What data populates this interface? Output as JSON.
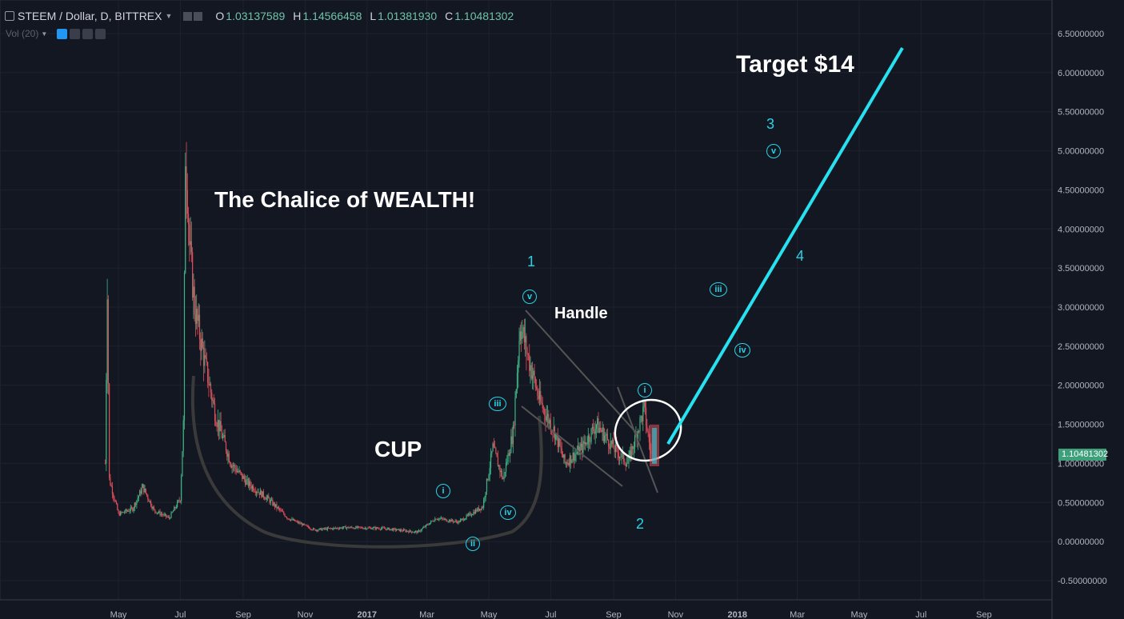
{
  "header": {
    "symbol": "STEEM / Dollar, D, BITTREX",
    "o_label": "O",
    "o_value": "1.03137589",
    "h_label": "H",
    "h_value": "1.14566458",
    "l_label": "L",
    "l_value": "1.01381930",
    "c_label": "C",
    "c_value": "1.10481302",
    "volume_label": "Vol (20)"
  },
  "price_tag": "1.10481302",
  "annotations": {
    "title": "The Chalice of WEALTH!",
    "cup": "CUP",
    "handle": "Handle",
    "target": "Target $14",
    "wave_1": "1",
    "wave_2": "2",
    "wave_3": "3",
    "wave_4": "4",
    "sub_v_top": "v",
    "sub_v_right": "v",
    "sub_i_left": "i",
    "sub_i_right": "i",
    "sub_ii": "ii",
    "sub_iii_left": "iii",
    "sub_iii_right": "iii",
    "sub_iv_left": "iv",
    "sub_iv_right": "iv"
  },
  "colors": {
    "background": "#131722",
    "up": "#3fb585",
    "down": "#e04e5a",
    "projection": "#27e0f0",
    "drawing": "#3d3d3d"
  },
  "chart_data": {
    "type": "candlestick",
    "y_ticks": [
      "6.50000000",
      "6.00000000",
      "5.50000000",
      "5.00000000",
      "4.50000000",
      "4.00000000",
      "3.50000000",
      "3.00000000",
      "2.50000000",
      "2.00000000",
      "1.50000000",
      "1.00000000",
      "0.50000000",
      "0.00000000",
      "-0.50000000"
    ],
    "ylim": [
      -0.5,
      6.5
    ],
    "x_ticks": [
      "May",
      "Jul",
      "Sep",
      "Nov",
      "2017",
      "Mar",
      "May",
      "Jul",
      "Sep",
      "Nov",
      "2018",
      "Mar",
      "May",
      "Jul",
      "Sep"
    ],
    "series": [
      {
        "values": [
          [
            "2016-04-18",
            1.0
          ],
          [
            "2016-04-20",
            3.3
          ],
          [
            "2016-04-22",
            0.8
          ],
          [
            "2016-05-01",
            0.35
          ],
          [
            "2016-05-15",
            0.42
          ],
          [
            "2016-05-25",
            0.7
          ],
          [
            "2016-06-05",
            0.4
          ],
          [
            "2016-06-20",
            0.3
          ],
          [
            "2016-07-01",
            0.55
          ],
          [
            "2016-07-04",
            1.5
          ],
          [
            "2016-07-06",
            5.0
          ],
          [
            "2016-07-08",
            4.5
          ],
          [
            "2016-07-10",
            3.8
          ],
          [
            "2016-07-15",
            3.0
          ],
          [
            "2016-07-25",
            2.3
          ],
          [
            "2016-08-05",
            1.6
          ],
          [
            "2016-08-20",
            1.0
          ],
          [
            "2016-09-05",
            0.75
          ],
          [
            "2016-09-25",
            0.55
          ],
          [
            "2016-10-15",
            0.3
          ],
          [
            "2016-11-10",
            0.15
          ],
          [
            "2016-12-10",
            0.18
          ],
          [
            "2017-01-15",
            0.17
          ],
          [
            "2017-02-20",
            0.12
          ],
          [
            "2017-03-10",
            0.3
          ],
          [
            "2017-04-01",
            0.25
          ],
          [
            "2017-04-25",
            0.45
          ],
          [
            "2017-05-05",
            1.2
          ],
          [
            "2017-05-15",
            0.8
          ],
          [
            "2017-05-25",
            1.4
          ],
          [
            "2017-06-01",
            2.8
          ],
          [
            "2017-06-08",
            2.4
          ],
          [
            "2017-06-20",
            1.8
          ],
          [
            "2017-07-05",
            1.4
          ],
          [
            "2017-07-15",
            1.0
          ],
          [
            "2017-08-01",
            1.2
          ],
          [
            "2017-08-15",
            1.5
          ],
          [
            "2017-09-01",
            1.2
          ],
          [
            "2017-09-15",
            1.0
          ],
          [
            "2017-10-01",
            1.7
          ],
          [
            "2017-10-08",
            1.1
          ]
        ]
      }
    ]
  }
}
